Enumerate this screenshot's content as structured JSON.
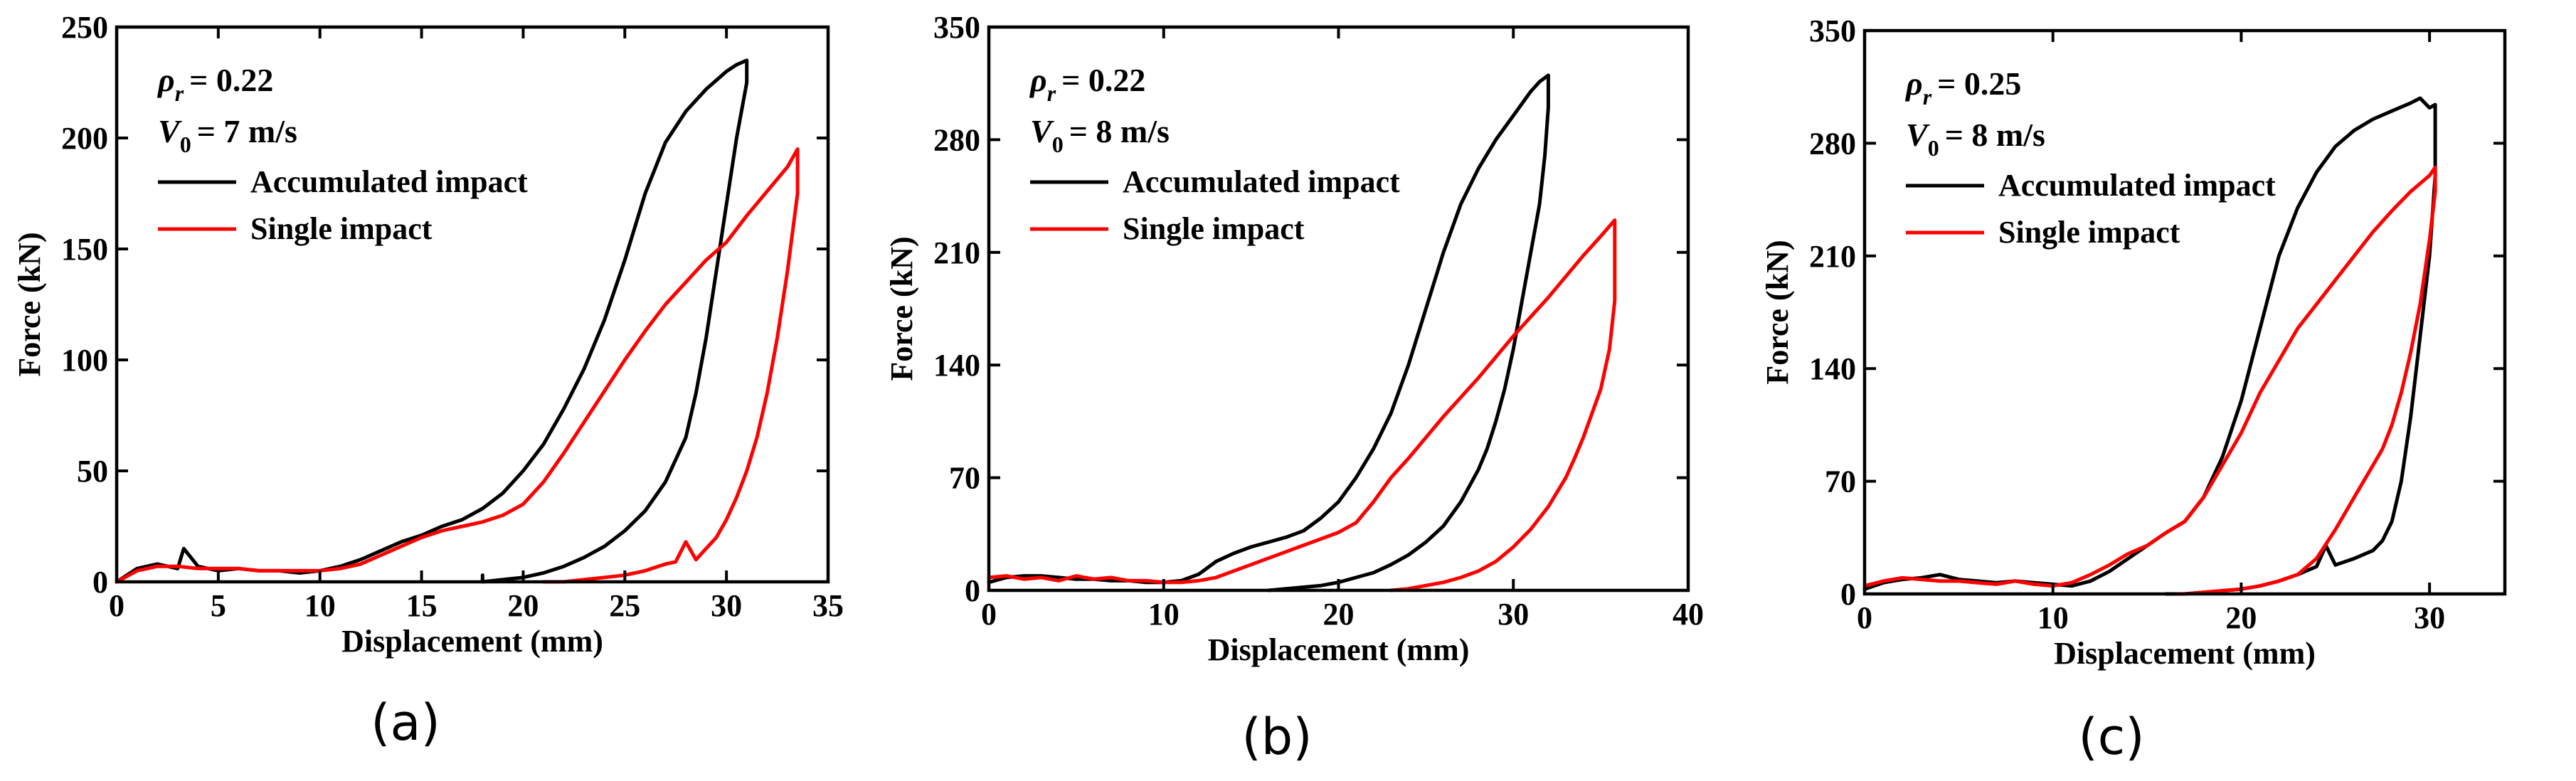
{
  "colors": {
    "accumulated": "#000000",
    "single": "#ff0000"
  },
  "chart_data": [
    {
      "type": "line",
      "panel_label": "(a)",
      "xlabel": "Displacement (mm)",
      "ylabel": "Force (kN)",
      "xlim": [
        0,
        35
      ],
      "ylim": [
        0,
        250
      ],
      "xticks": [
        0,
        5,
        10,
        15,
        20,
        25,
        30,
        35
      ],
      "yticks": [
        0,
        50,
        100,
        150,
        200,
        250
      ],
      "grid": false,
      "annotation": {
        "rho_symbol": "ρ",
        "rho_sub": "r",
        "rho_value": "= 0.22",
        "v_symbol": "V",
        "v_sub": "0",
        "v_value": "= 7 m/s"
      },
      "legend": [
        "Accumulated impact",
        "Single impact"
      ],
      "series": [
        {
          "name": "Accumulated impact",
          "color": "#000000",
          "x": [
            0,
            1,
            2,
            3,
            3.3,
            4,
            5,
            6,
            7,
            8,
            9,
            10,
            11,
            12,
            13,
            14,
            15,
            16,
            17,
            18,
            19,
            20,
            21,
            22,
            23,
            24,
            25,
            26,
            27,
            28,
            29,
            30,
            30.5,
            31,
            31,
            30.5,
            30,
            29.5,
            29,
            28.5,
            28,
            27,
            26,
            25,
            24,
            23,
            22,
            21,
            20,
            19,
            18,
            18
          ],
          "y": [
            0,
            6,
            8,
            6,
            15,
            7,
            5,
            6,
            5,
            5,
            4,
            5,
            7,
            10,
            14,
            18,
            21,
            25,
            28,
            33,
            40,
            50,
            62,
            78,
            96,
            118,
            145,
            175,
            198,
            212,
            222,
            230,
            233,
            235,
            225,
            200,
            170,
            140,
            110,
            85,
            65,
            45,
            32,
            23,
            16,
            11,
            7,
            4,
            2,
            1,
            0,
            3
          ]
        },
        {
          "name": "Single impact",
          "color": "#ff0000",
          "x": [
            0,
            1,
            2,
            3,
            4,
            5,
            6,
            7,
            8,
            9,
            10,
            11,
            12,
            13,
            14,
            15,
            16,
            17,
            18,
            19,
            20,
            21,
            22,
            23,
            24,
            25,
            26,
            27,
            28,
            29,
            30,
            31,
            32,
            33,
            33.5,
            33.5,
            33,
            32.5,
            32,
            31.5,
            31,
            30.5,
            30,
            29.5,
            29,
            28.5,
            28,
            27.5,
            27,
            26,
            25,
            24,
            23,
            22,
            21
          ],
          "y": [
            0,
            5,
            7,
            7,
            6,
            6,
            6,
            5,
            5,
            5,
            5,
            6,
            8,
            12,
            16,
            20,
            23,
            25,
            27,
            30,
            35,
            45,
            58,
            72,
            86,
            100,
            113,
            125,
            135,
            145,
            153,
            165,
            176,
            187,
            195,
            175,
            140,
            110,
            85,
            65,
            50,
            38,
            28,
            20,
            15,
            10,
            18,
            9,
            8,
            5,
            3,
            2,
            1,
            0,
            0
          ]
        }
      ]
    },
    {
      "type": "line",
      "panel_label": "(b)",
      "xlabel": "Displacement (mm)",
      "ylabel": "Force (kN)",
      "xlim": [
        0,
        40
      ],
      "ylim": [
        0,
        350
      ],
      "xticks": [
        0,
        10,
        20,
        30,
        40
      ],
      "yticks": [
        0,
        70,
        140,
        210,
        280,
        350
      ],
      "grid": false,
      "annotation": {
        "rho_symbol": "ρ",
        "rho_sub": "r",
        "rho_value": "= 0.22",
        "v_symbol": "V",
        "v_sub": "0",
        "v_value": "= 8 m/s"
      },
      "legend": [
        "Accumulated impact",
        "Single impact"
      ],
      "series": [
        {
          "name": "Accumulated impact",
          "color": "#000000",
          "x": [
            0,
            1,
            2,
            3,
            4,
            5,
            6,
            7,
            8,
            9,
            10,
            11,
            12,
            13,
            14,
            15,
            16,
            17,
            18,
            19,
            20,
            21,
            22,
            23,
            24,
            25,
            26,
            27,
            28,
            29,
            30,
            31,
            31.5,
            32,
            32,
            31.8,
            31.5,
            31,
            30.5,
            30,
            29.5,
            29,
            28.5,
            28,
            27,
            26,
            25,
            24,
            23,
            22,
            21,
            20,
            19,
            18,
            17,
            16
          ],
          "y": [
            5,
            8,
            9,
            9,
            8,
            7,
            7,
            6,
            6,
            5,
            5,
            6,
            10,
            18,
            23,
            27,
            30,
            33,
            37,
            45,
            55,
            70,
            88,
            110,
            140,
            175,
            210,
            240,
            262,
            280,
            295,
            310,
            316,
            320,
            300,
            270,
            240,
            210,
            180,
            150,
            125,
            105,
            88,
            75,
            55,
            40,
            30,
            22,
            16,
            11,
            8,
            5,
            3,
            2,
            1,
            0
          ]
        },
        {
          "name": "Single impact",
          "color": "#ff0000",
          "x": [
            0,
            1,
            2,
            3,
            4,
            5,
            6,
            7,
            8,
            9,
            10,
            11,
            12,
            13,
            14,
            15,
            16,
            17,
            18,
            19,
            20,
            21,
            22,
            23,
            24,
            25,
            26,
            27,
            28,
            29,
            30,
            31,
            32,
            33,
            34,
            35,
            35.8,
            35.8,
            35.5,
            35,
            34.5,
            34,
            33.5,
            33,
            32,
            31,
            30,
            29,
            28,
            27,
            26,
            25,
            24,
            23
          ],
          "y": [
            8,
            9,
            7,
            8,
            6,
            9,
            7,
            8,
            6,
            6,
            5,
            5,
            6,
            8,
            12,
            16,
            20,
            24,
            28,
            32,
            36,
            42,
            55,
            70,
            82,
            95,
            108,
            120,
            132,
            145,
            158,
            170,
            182,
            195,
            208,
            220,
            230,
            180,
            150,
            125,
            110,
            95,
            82,
            70,
            52,
            38,
            27,
            18,
            12,
            8,
            5,
            3,
            1,
            0
          ]
        }
      ]
    },
    {
      "type": "line",
      "panel_label": "(c)",
      "xlabel": "Displacement (mm)",
      "ylabel": "Force (kN)",
      "xlim": [
        0,
        34
      ],
      "ylim": [
        0,
        350
      ],
      "xticks": [
        0,
        10,
        20,
        30
      ],
      "yticks": [
        0,
        70,
        140,
        210,
        280,
        350
      ],
      "grid": false,
      "annotation": {
        "rho_symbol": "ρ",
        "rho_sub": "r",
        "rho_value": "= 0.25",
        "v_symbol": "V",
        "v_sub": "0",
        "v_value": "= 8 m/s"
      },
      "legend": [
        "Accumulated impact",
        "Single impact"
      ],
      "series": [
        {
          "name": "Accumulated impact",
          "color": "#000000",
          "x": [
            0,
            1,
            2,
            3,
            4,
            5,
            6,
            7,
            8,
            9,
            10,
            11,
            12,
            13,
            14,
            15,
            16,
            17,
            18,
            19,
            20,
            21,
            22,
            23,
            24,
            25,
            26,
            27,
            28,
            29,
            29.5,
            30,
            30.3,
            30.3,
            30,
            29.5,
            29,
            28.5,
            28,
            27.5,
            27,
            26,
            25,
            24.5,
            24,
            23,
            22,
            21,
            20,
            19,
            18,
            17,
            16
          ],
          "y": [
            3,
            7,
            9,
            10,
            12,
            9,
            8,
            7,
            8,
            7,
            6,
            5,
            8,
            14,
            22,
            30,
            38,
            45,
            60,
            85,
            120,
            165,
            210,
            240,
            262,
            278,
            288,
            295,
            300,
            305,
            308,
            302,
            304,
            260,
            210,
            160,
            110,
            70,
            45,
            33,
            27,
            22,
            18,
            30,
            17,
            12,
            8,
            5,
            3,
            2,
            1,
            0,
            0
          ]
        },
        {
          "name": "Single impact",
          "color": "#ff0000",
          "x": [
            0,
            1,
            2,
            3,
            4,
            5,
            6,
            7,
            8,
            9,
            10,
            11,
            12,
            13,
            14,
            15,
            16,
            17,
            18,
            19,
            20,
            21,
            22,
            23,
            24,
            25,
            26,
            27,
            28,
            29,
            30,
            30.3,
            30.3,
            30,
            29.5,
            29,
            28.5,
            28,
            27.5,
            27,
            26,
            25,
            24,
            23,
            22,
            21,
            20,
            19,
            18,
            17,
            16.5
          ],
          "y": [
            5,
            8,
            10,
            9,
            8,
            8,
            7,
            6,
            8,
            6,
            5,
            7,
            12,
            18,
            25,
            30,
            38,
            45,
            60,
            80,
            100,
            125,
            145,
            165,
            180,
            195,
            210,
            225,
            238,
            250,
            260,
            265,
            250,
            220,
            180,
            150,
            125,
            105,
            90,
            80,
            60,
            40,
            22,
            12,
            8,
            5,
            3,
            2,
            1,
            0,
            0
          ]
        }
      ]
    }
  ]
}
